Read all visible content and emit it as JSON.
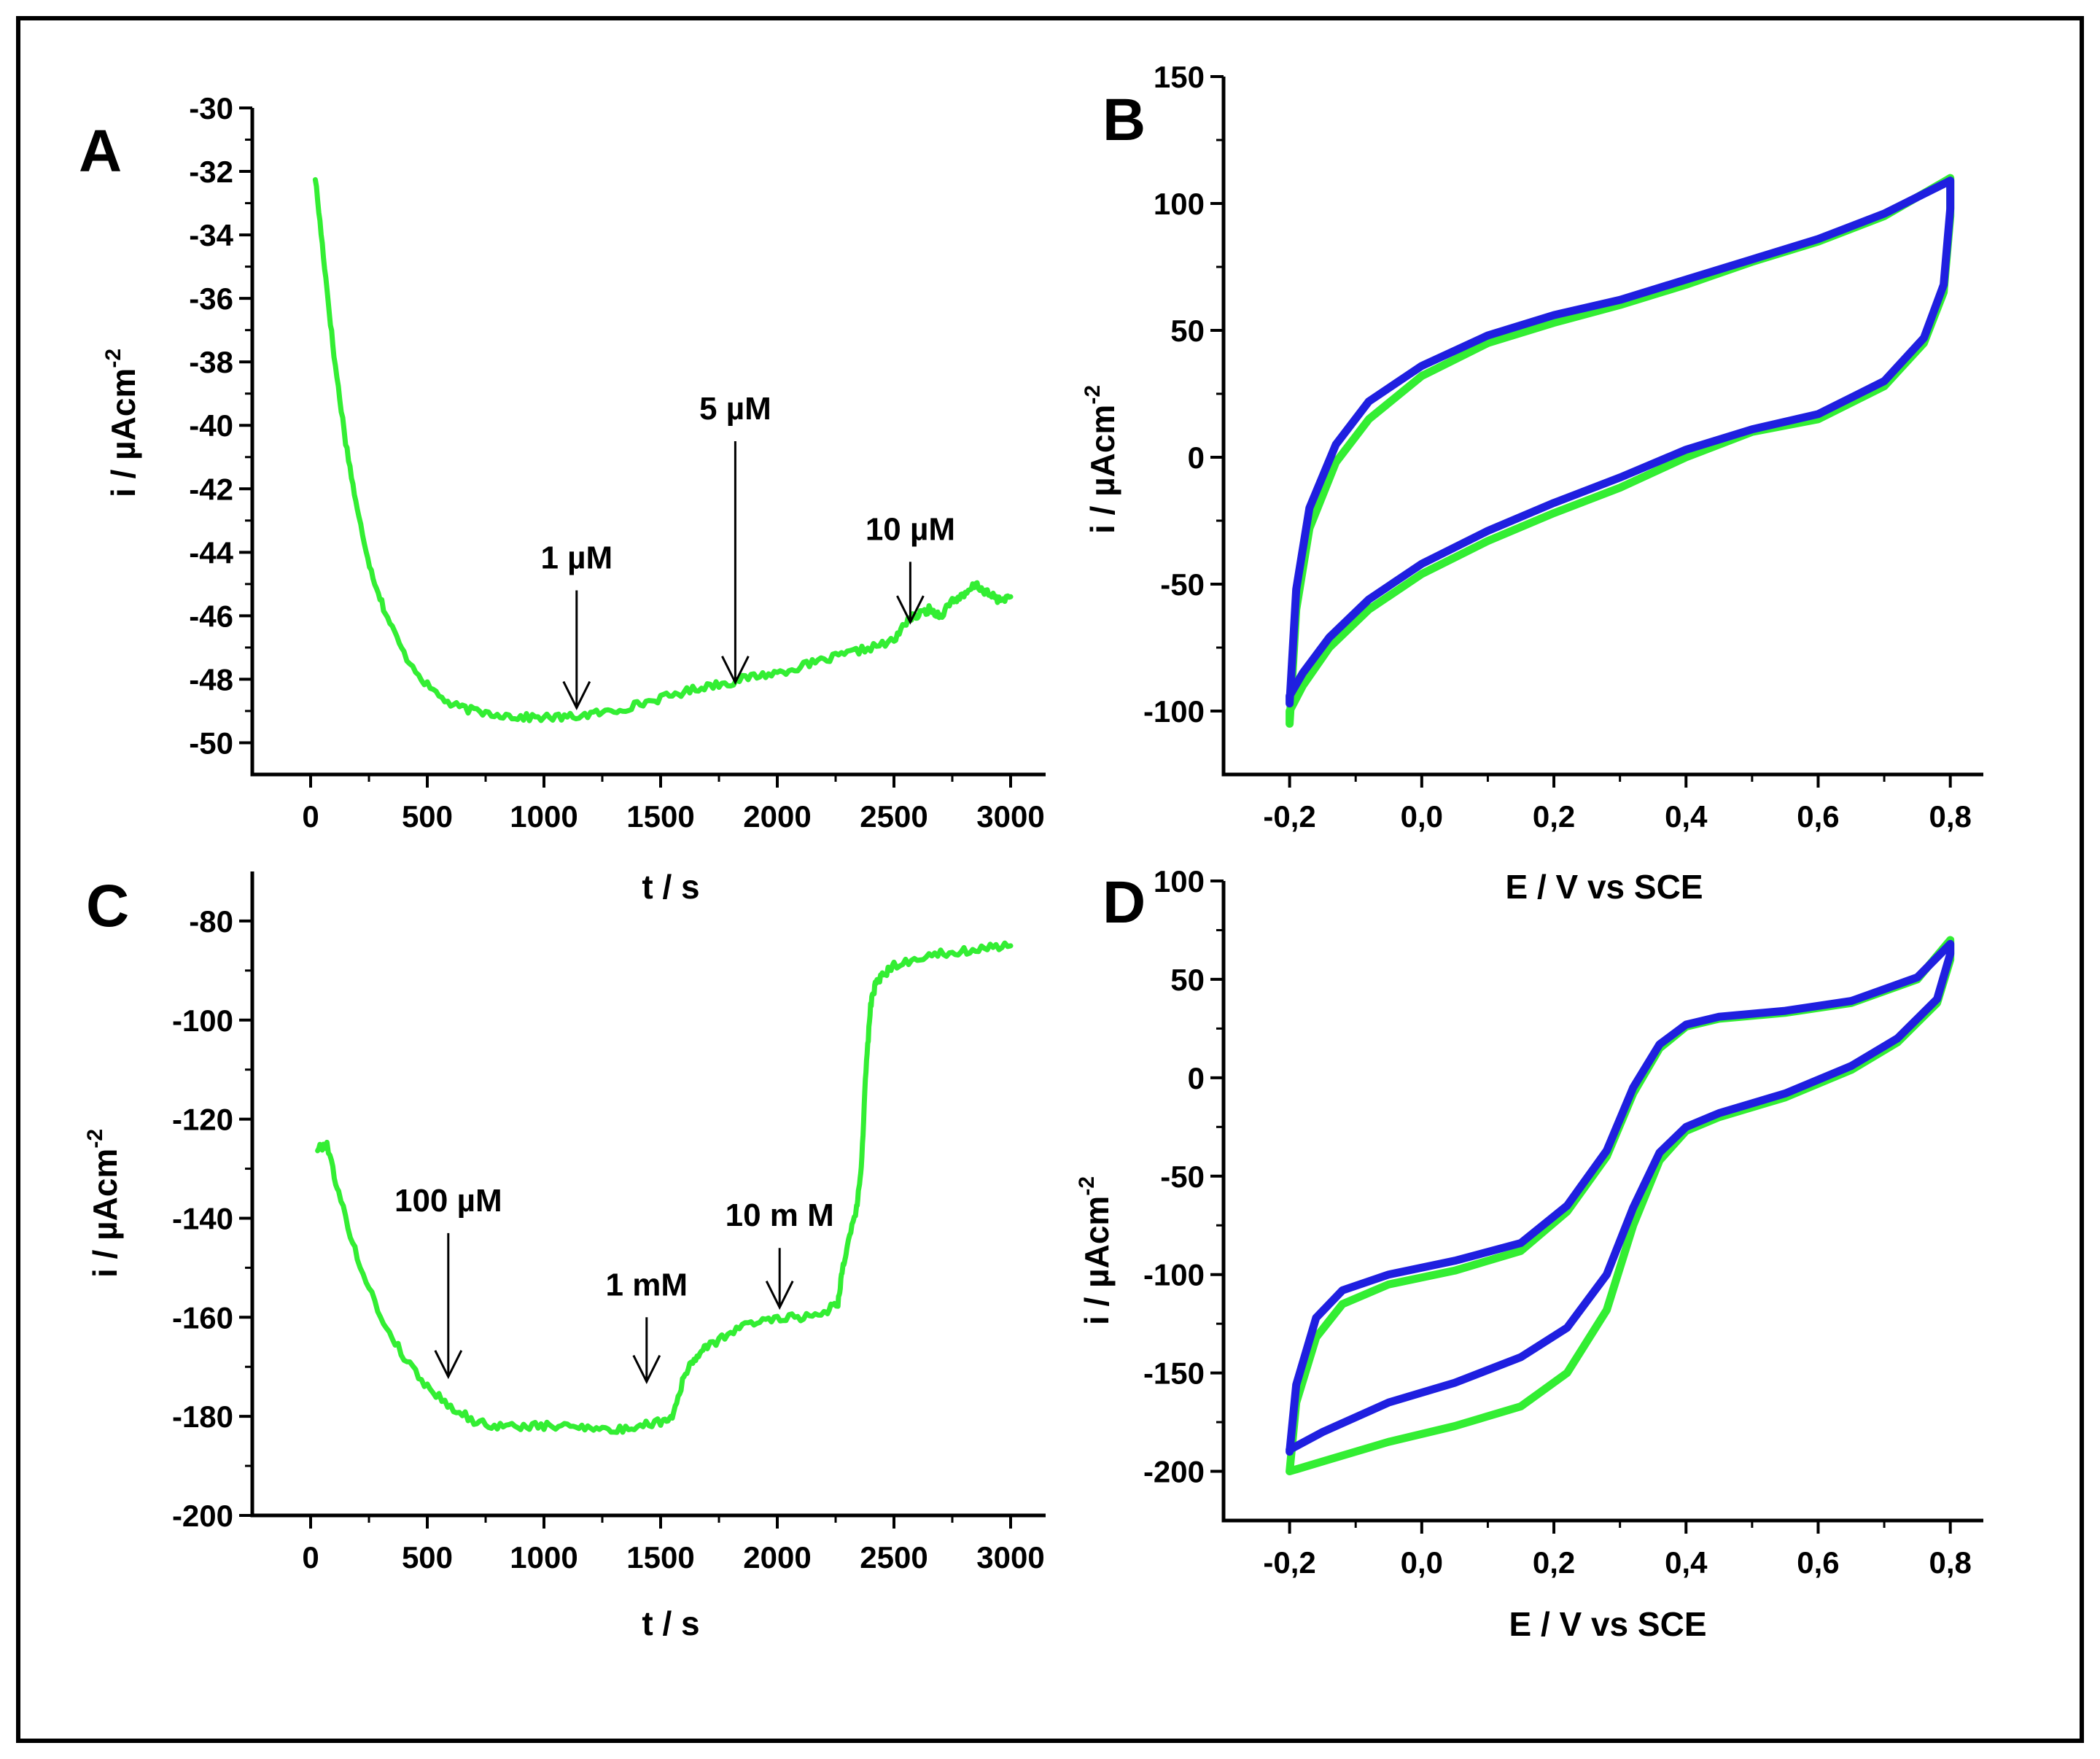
{
  "colors": {
    "green": "#33ee33",
    "blue": "#1f1fe0",
    "axis": "#000000"
  },
  "chart_data": [
    {
      "panel": "A",
      "type": "line",
      "xlabel": "t / s",
      "ylabel": "i / µAcm-2",
      "ylabel_main": "i / µAcm",
      "ylabel_sup": "-2",
      "xlim": [
        -250,
        3150
      ],
      "ylim": [
        -51,
        -30
      ],
      "xticks": [
        0,
        500,
        1000,
        1500,
        2000,
        2500,
        3000
      ],
      "xtick_labels": [
        "0",
        "500",
        "1000",
        "1500",
        "2000",
        "2500",
        "3000"
      ],
      "yticks": [
        -50,
        -48,
        -46,
        -44,
        -42,
        -40,
        -38,
        -36,
        -34,
        -32,
        -30
      ],
      "ytick_labels": [
        "-50",
        "-48",
        "-46",
        "-44",
        "-42",
        "-40",
        "-38",
        "-36",
        "-34",
        "-32",
        "-30"
      ],
      "series": [
        {
          "name": "current",
          "color": "green",
          "noise": 0.12,
          "x": [
            20,
            60,
            100,
            150,
            200,
            260,
            320,
            400,
            500,
            600,
            700,
            800,
            900,
            1000,
            1100,
            1200,
            1300,
            1400,
            1500,
            1600,
            1700,
            1800,
            1900,
            2000,
            2100,
            2200,
            2300,
            2400,
            2500,
            2560,
            2600,
            2650,
            2700,
            2750,
            2800,
            2850,
            2900,
            2950,
            3000
          ],
          "y": [
            -32.2,
            -35.0,
            -37.8,
            -40.5,
            -42.7,
            -44.6,
            -45.9,
            -47.2,
            -48.2,
            -48.8,
            -49.0,
            -49.1,
            -49.2,
            -49.2,
            -49.2,
            -49.1,
            -49.0,
            -48.8,
            -48.6,
            -48.4,
            -48.2,
            -48.1,
            -47.9,
            -47.8,
            -47.6,
            -47.4,
            -47.2,
            -47.0,
            -46.8,
            -46.1,
            -46.0,
            -45.8,
            -46.0,
            -45.5,
            -45.4,
            -45.0,
            -45.3,
            -45.5,
            -45.4
          ]
        }
      ],
      "annotations": [
        {
          "text": "1 µM",
          "x": 1140,
          "y_from": -45.2,
          "y_to": -48.9
        },
        {
          "text": "5 µM",
          "x": 1820,
          "y_from": -40.5,
          "y_to": -48.1
        },
        {
          "text": "10 µM",
          "x": 2570,
          "y_from": -44.3,
          "y_to": -46.2
        }
      ]
    },
    {
      "panel": "B",
      "type": "line",
      "xlabel": "E / V vs SCE",
      "ylabel": "i / µAcm-2",
      "ylabel_main": "i / µAcm",
      "ylabel_sup": "-2",
      "xlim": [
        -0.3,
        0.85
      ],
      "ylim": [
        -125,
        150
      ],
      "xticks": [
        -0.2,
        0.0,
        0.2,
        0.4,
        0.6,
        0.8
      ],
      "xtick_labels": [
        "-0,2",
        "0,0",
        "0,2",
        "0,4",
        "0,6",
        "0,8"
      ],
      "yticks": [
        -100,
        -50,
        0,
        50,
        100,
        150
      ],
      "ytick_labels": [
        "-100",
        "-50",
        "0",
        "50",
        "100",
        "150"
      ],
      "series": [
        {
          "name": "cv-green",
          "color": "green",
          "x": [
            -0.2,
            -0.19,
            -0.17,
            -0.13,
            -0.08,
            0.0,
            0.1,
            0.2,
            0.3,
            0.4,
            0.5,
            0.6,
            0.7,
            0.8,
            0.8,
            0.79,
            0.76,
            0.7,
            0.6,
            0.5,
            0.4,
            0.3,
            0.2,
            0.1,
            0.0,
            -0.08,
            -0.14,
            -0.18,
            -0.2,
            -0.2
          ],
          "y": [
            -105,
            -60,
            -28,
            -2,
            15,
            32,
            45,
            53,
            60,
            68,
            77,
            85,
            95,
            110,
            95,
            65,
            45,
            28,
            15,
            10,
            0,
            -12,
            -22,
            -33,
            -46,
            -60,
            -75,
            -90,
            -100,
            -105
          ]
        },
        {
          "name": "cv-blue",
          "color": "blue",
          "x": [
            -0.2,
            -0.19,
            -0.17,
            -0.13,
            -0.08,
            0.0,
            0.1,
            0.2,
            0.3,
            0.4,
            0.5,
            0.6,
            0.7,
            0.8,
            0.8,
            0.79,
            0.76,
            0.7,
            0.6,
            0.5,
            0.4,
            0.3,
            0.2,
            0.1,
            0.0,
            -0.08,
            -0.14,
            -0.18,
            -0.2,
            -0.2
          ],
          "y": [
            -97,
            -52,
            -20,
            5,
            22,
            36,
            48,
            56,
            62,
            70,
            78,
            86,
            96,
            109,
            98,
            68,
            47,
            30,
            17,
            11,
            3,
            -8,
            -18,
            -29,
            -42,
            -56,
            -71,
            -85,
            -94,
            -97
          ]
        }
      ]
    },
    {
      "panel": "C",
      "type": "line",
      "xlabel": "t / s",
      "ylabel": "i / µAcm-2",
      "ylabel_main": "i / µAcm",
      "ylabel_sup": "-2",
      "xlim": [
        -250,
        3150
      ],
      "ylim": [
        -200,
        -70
      ],
      "xticks": [
        0,
        500,
        1000,
        1500,
        2000,
        2500,
        3000
      ],
      "xtick_labels": [
        "0",
        "500",
        "1000",
        "1500",
        "2000",
        "2500",
        "3000"
      ],
      "yticks": [
        -200,
        -180,
        -160,
        -140,
        -120,
        -100,
        -80
      ],
      "ytick_labels": [
        "-200",
        "-180",
        "-160",
        "-140",
        "-120",
        "-100",
        "-80"
      ],
      "series": [
        {
          "name": "current",
          "color": "green",
          "noise": 0.8,
          "x": [
            30,
            70,
            120,
            200,
            300,
            400,
            500,
            600,
            700,
            800,
            900,
            1000,
            1100,
            1200,
            1300,
            1400,
            1500,
            1550,
            1600,
            1650,
            1700,
            1800,
            1900,
            2000,
            2100,
            2200,
            2260,
            2280,
            2300,
            2340,
            2360,
            2380,
            2400,
            2420,
            2450,
            2500,
            2600,
            2700,
            2800,
            2900,
            3000
          ],
          "y": [
            -126,
            -125,
            -135,
            -148,
            -160,
            -168,
            -174,
            -178,
            -181,
            -182,
            -182,
            -182,
            -182,
            -182,
            -183,
            -182,
            -181,
            -180,
            -172,
            -168,
            -166,
            -163,
            -161,
            -160,
            -160,
            -159,
            -157,
            -150,
            -146,
            -138,
            -130,
            -110,
            -97,
            -93,
            -91,
            -89,
            -87.5,
            -86.5,
            -86,
            -85.5,
            -85
          ]
        }
      ],
      "annotations": [
        {
          "text": "100 µM",
          "x": 590,
          "y_from": -143,
          "y_to": -172
        },
        {
          "text": "1 mM",
          "x": 1440,
          "y_from": -160,
          "y_to": -173
        },
        {
          "text": "10 m M",
          "x": 2010,
          "y_from": -146,
          "y_to": -158
        }
      ]
    },
    {
      "panel": "D",
      "type": "line",
      "xlabel": "E / V vs SCE",
      "ylabel": "i / µAcm-2",
      "ylabel_main": "i / µAcm",
      "ylabel_sup": "-2",
      "xlim": [
        -0.3,
        0.85
      ],
      "ylim": [
        -225,
        100
      ],
      "xticks": [
        -0.2,
        0.0,
        0.2,
        0.4,
        0.6,
        0.8
      ],
      "xtick_labels": [
        "-0,2",
        "0,0",
        "0,2",
        "0,4",
        "0,6",
        "0,8"
      ],
      "yticks": [
        -200,
        -150,
        -100,
        -50,
        0,
        50,
        100
      ],
      "ytick_labels": [
        "-200",
        "-150",
        "-100",
        "-50",
        "0",
        "50",
        "100"
      ],
      "series": [
        {
          "name": "cv-green",
          "color": "green",
          "x": [
            -0.2,
            -0.19,
            -0.16,
            -0.12,
            -0.05,
            0.05,
            0.15,
            0.22,
            0.28,
            0.32,
            0.36,
            0.4,
            0.45,
            0.55,
            0.65,
            0.75,
            0.8,
            0.8,
            0.78,
            0.72,
            0.65,
            0.55,
            0.45,
            0.4,
            0.36,
            0.32,
            0.28,
            0.22,
            0.15,
            0.05,
            -0.05,
            -0.15,
            -0.2
          ],
          "y": [
            -200,
            -165,
            -132,
            -115,
            -105,
            -98,
            -88,
            -68,
            -40,
            -8,
            15,
            26,
            30,
            33,
            38,
            50,
            70,
            60,
            38,
            18,
            4,
            -10,
            -20,
            -27,
            -42,
            -75,
            -118,
            -150,
            -167,
            -177,
            -185,
            -195,
            -200
          ]
        },
        {
          "name": "cv-blue",
          "color": "blue",
          "x": [
            -0.2,
            -0.19,
            -0.16,
            -0.12,
            -0.05,
            0.05,
            0.15,
            0.22,
            0.28,
            0.32,
            0.36,
            0.4,
            0.45,
            0.55,
            0.65,
            0.75,
            0.8,
            0.8,
            0.78,
            0.72,
            0.65,
            0.55,
            0.45,
            0.4,
            0.36,
            0.32,
            0.28,
            0.22,
            0.15,
            0.05,
            -0.05,
            -0.15,
            -0.2
          ],
          "y": [
            -190,
            -156,
            -122,
            -108,
            -100,
            -93,
            -84,
            -65,
            -37,
            -5,
            17,
            27,
            31,
            34,
            39,
            51,
            68,
            63,
            40,
            20,
            6,
            -8,
            -18,
            -25,
            -38,
            -66,
            -100,
            -127,
            -142,
            -155,
            -165,
            -180,
            -189
          ]
        }
      ]
    }
  ]
}
